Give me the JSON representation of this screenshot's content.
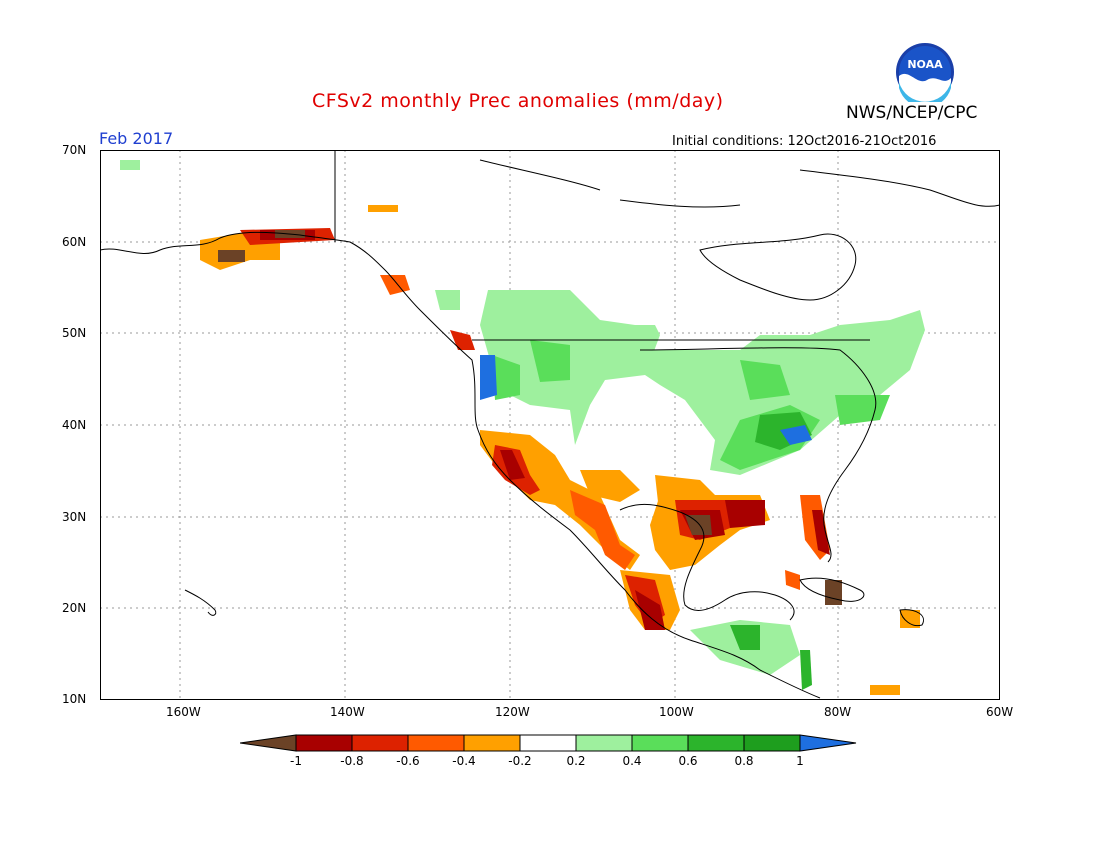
{
  "title": "CFSv2 monthly Prec anomalies (mm/day)",
  "organization": "NWS/NCEP/CPC",
  "logo_text": "NOAA",
  "valid_month": "Feb 2017",
  "initial_conditions": "Initial conditions: 12Oct2016-21Oct2016",
  "map": {
    "lat_labels": [
      "70N",
      "60N",
      "50N",
      "40N",
      "30N",
      "20N",
      "10N"
    ],
    "lon_labels": [
      "160W",
      "140W",
      "120W",
      "100W",
      "80W",
      "60W"
    ]
  },
  "colorbar": {
    "labels": [
      "-1",
      "-0.8",
      "-0.6",
      "-0.4",
      "-0.2",
      "0.2",
      "0.4",
      "0.6",
      "0.8",
      "1"
    ],
    "colors": [
      "#6b4226",
      "#a80000",
      "#dd2200",
      "#ff5a00",
      "#ffa000",
      "#ffffff",
      "#9ef09e",
      "#5ade5a",
      "#2cb42c",
      "#1e9e1e",
      "#1e6fe0"
    ]
  }
}
